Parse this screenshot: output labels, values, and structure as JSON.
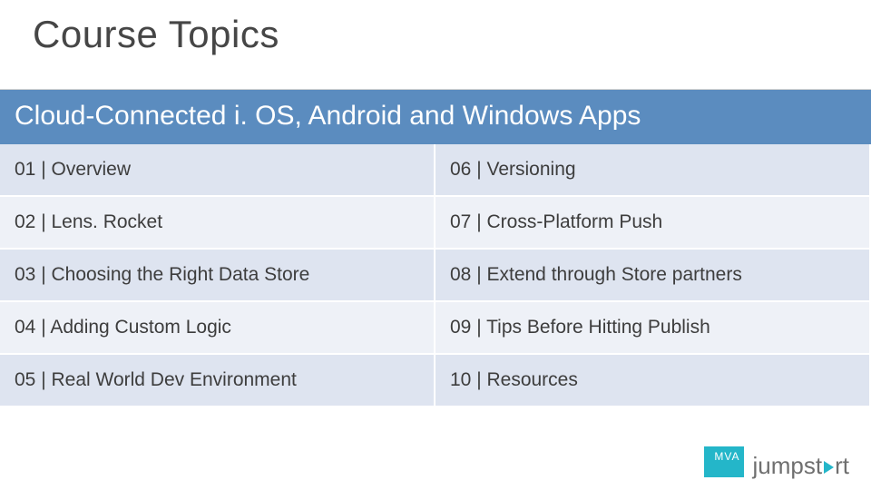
{
  "slide": {
    "title": "Course Topics",
    "title_color": "#464646",
    "title_fontsize": 42,
    "banner": {
      "text": "Cloud-Connected i. OS, Android and Windows Apps",
      "background": "#5b8cbf",
      "color": "#ffffff",
      "fontsize": 30
    },
    "table": {
      "type": "table",
      "columns": 2,
      "row_colors": [
        "#dee4f0",
        "#eef1f7"
      ],
      "cell_fontsize": 21,
      "cell_color": "#3d3d3d",
      "rows": [
        [
          "01 | Overview",
          "06 | Versioning"
        ],
        [
          "02 | Lens. Rocket",
          "07 | Cross-Platform Push"
        ],
        [
          "03 | Choosing the Right Data Store",
          "08 | Extend through Store partners"
        ],
        [
          "04 | Adding Custom Logic",
          "09 | Tips Before Hitting Publish"
        ],
        [
          "05 | Real World Dev Environment",
          "10 | Resources"
        ]
      ]
    },
    "footer": {
      "mva_label": "MVA",
      "mva_background": "#24b6c9",
      "mva_color": "#ffffff",
      "jumpstart_prefix": "jumpst",
      "jumpstart_suffix": "rt",
      "jumpstart_color": "#6f6f6f",
      "jumpstart_triangle_color": "#24b6c9",
      "jumpstart_fontsize": 26
    }
  }
}
